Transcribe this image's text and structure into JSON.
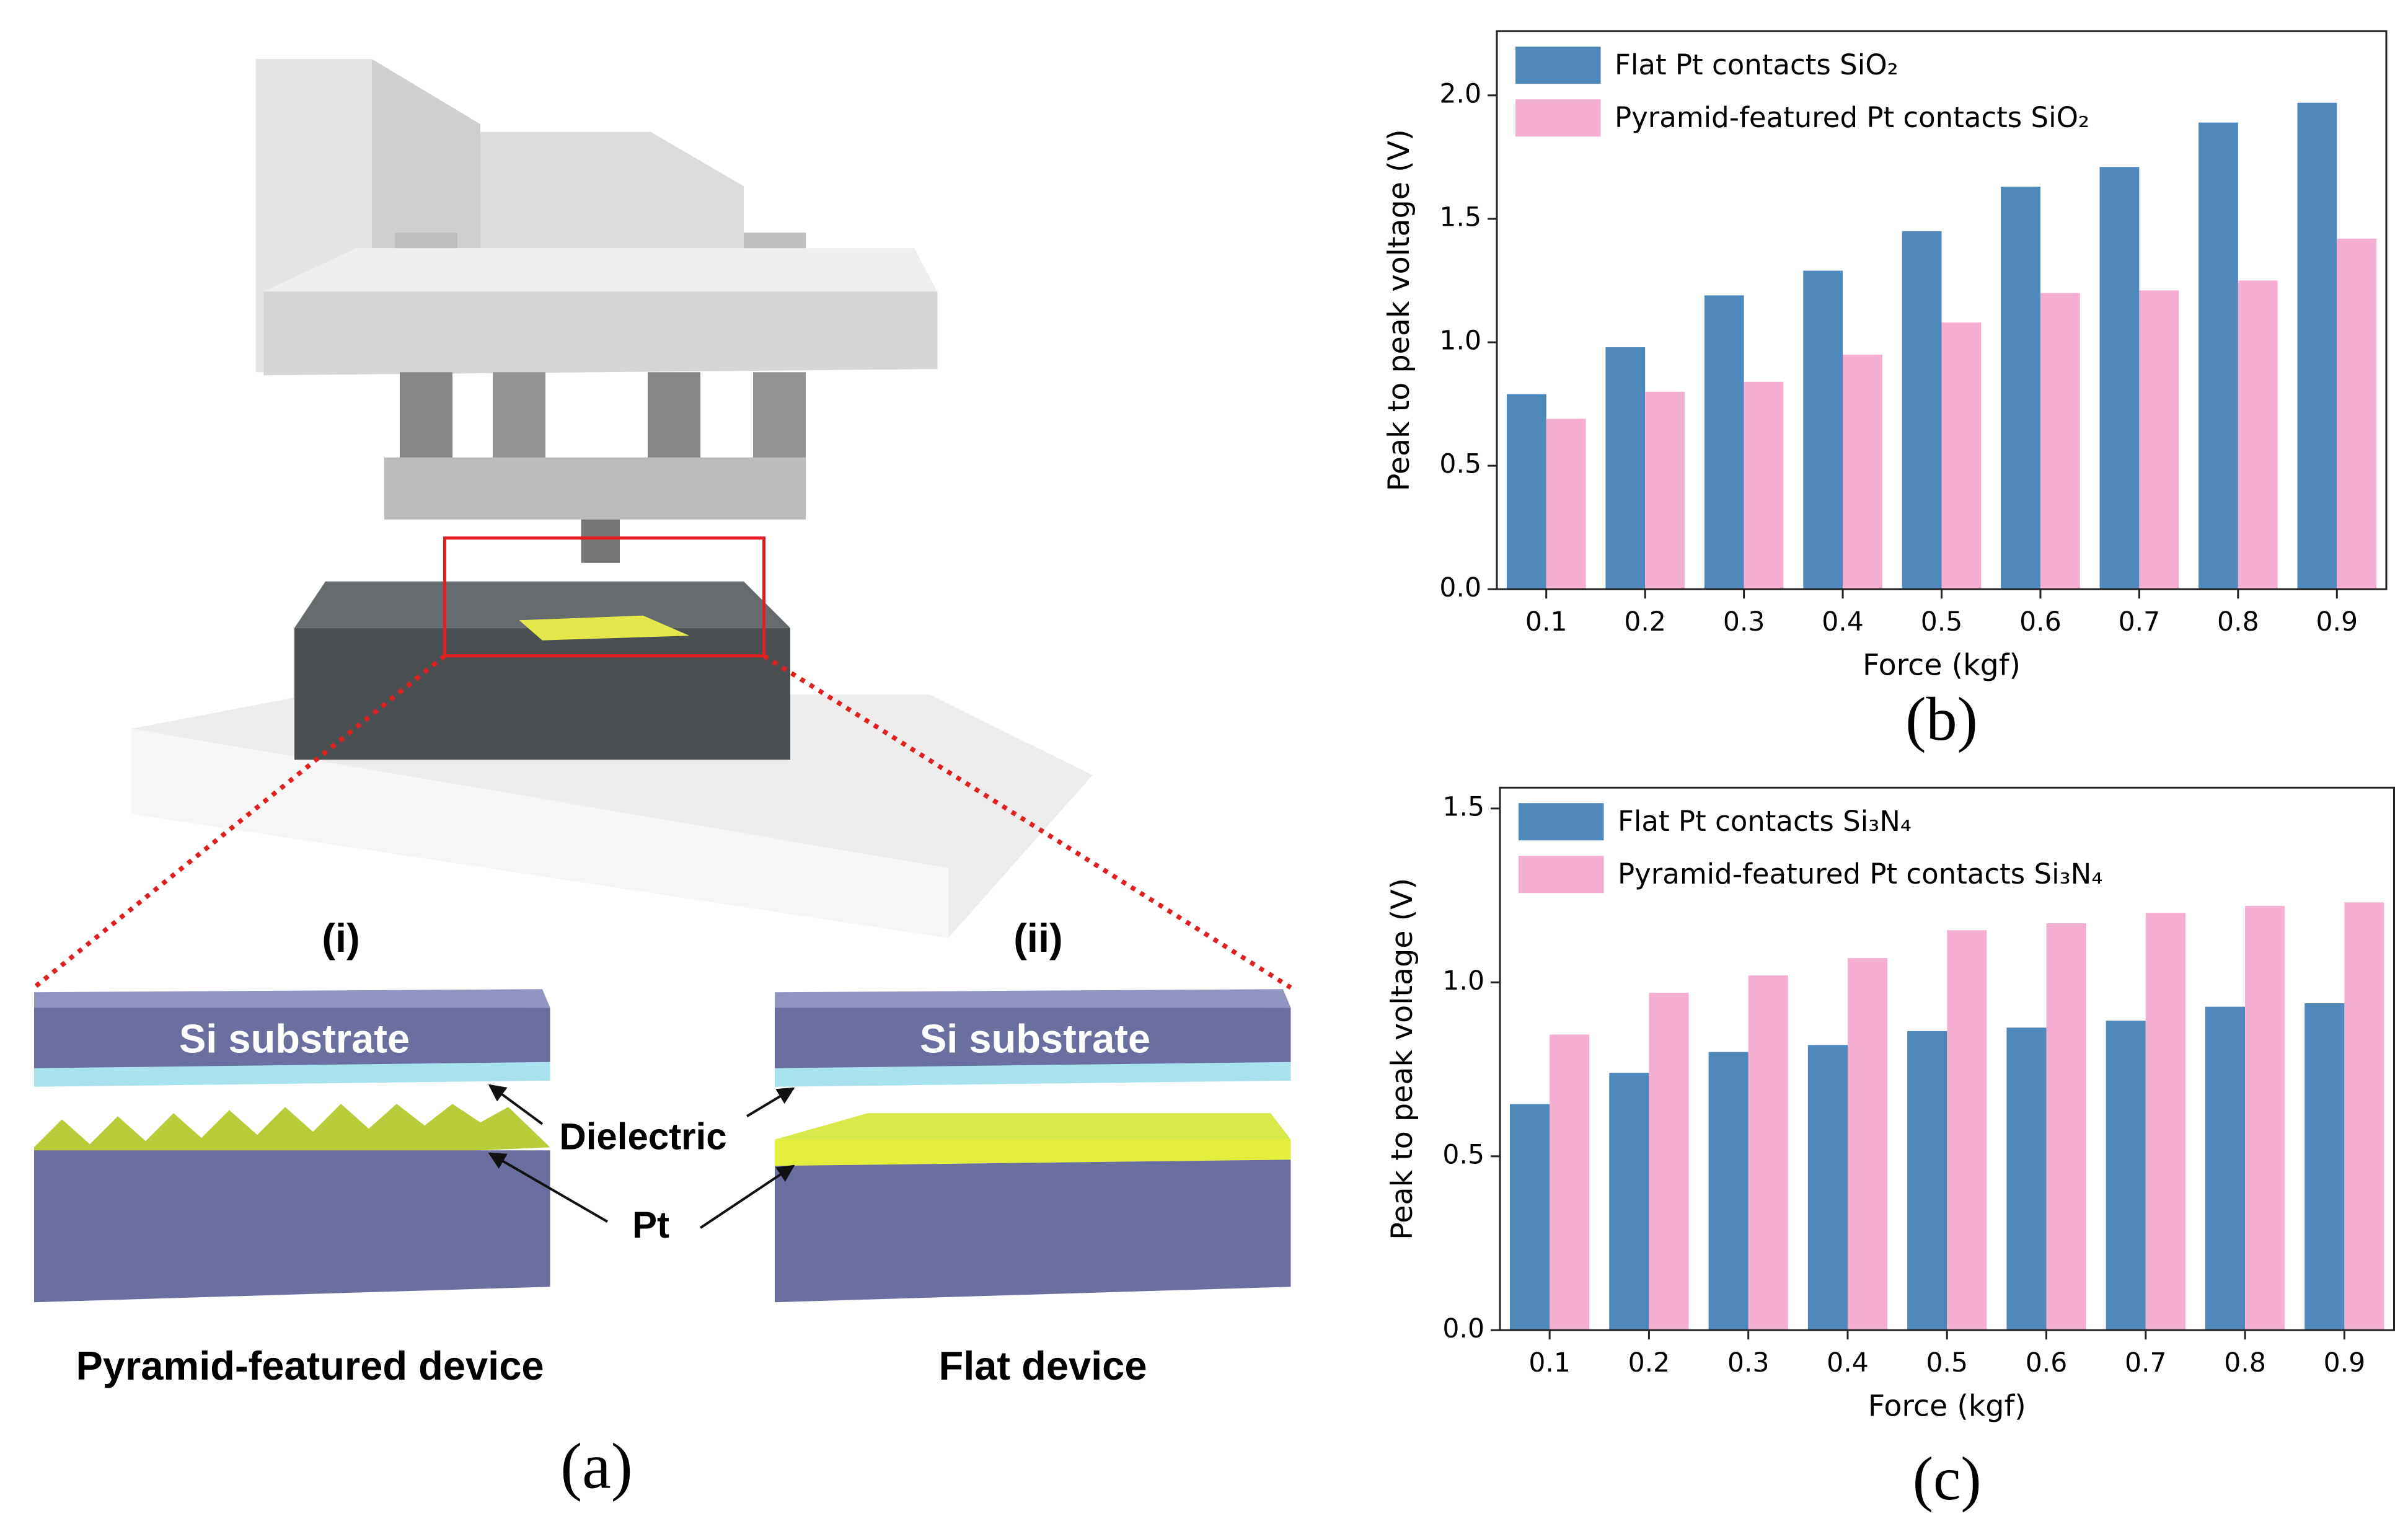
{
  "figure_a": {
    "label": "(a)",
    "left_label": "(i)",
    "right_label": "(ii)",
    "left_substrate": "Si substrate",
    "right_substrate": "Si substrate",
    "dielectric": "Dielectric",
    "pt": "Pt",
    "left_caption": "Pyramid-featured device",
    "right_caption": "Flat device"
  },
  "chart_data": [
    {
      "type": "bar",
      "label": "(b)",
      "x_label": "Force (kgf)",
      "y_label": "Peak to peak voltage (V)",
      "categories": [
        "0.1",
        "0.2",
        "0.3",
        "0.4",
        "0.5",
        "0.6",
        "0.7",
        "0.8",
        "0.9"
      ],
      "series": [
        {
          "name": "Flat Pt contacts SiO₂",
          "color": "#4f88ba",
          "values": [
            0.79,
            0.98,
            1.19,
            1.29,
            1.45,
            1.63,
            1.71,
            1.89,
            1.97
          ]
        },
        {
          "name": "Pyramid-featured Pt contacts SiO₂",
          "color": "#f5afd2",
          "values": [
            0.69,
            0.8,
            0.84,
            0.95,
            1.08,
            1.2,
            1.21,
            1.25,
            1.42
          ]
        }
      ],
      "ylim": [
        0,
        2.26
      ],
      "yticks": [
        {
          "value": 0,
          "label": "0.0"
        },
        0.5,
        {
          "value": 1,
          "label": "1.0"
        },
        1.5,
        {
          "value": 2,
          "label": "2.0"
        }
      ],
      "legend": "upper left",
      "grid": false
    },
    {
      "type": "bar",
      "label": "(c)",
      "x_label": "Force (kgf)",
      "y_label": "Peak to peak voltage (V)",
      "categories": [
        "0.1",
        "0.2",
        "0.3",
        "0.4",
        "0.5",
        "0.6",
        "0.7",
        "0.8",
        "0.9"
      ],
      "series": [
        {
          "name": "Flat Pt contacts Si₃N₄",
          "color": "#4f88ba",
          "values": [
            0.65,
            0.74,
            0.8,
            0.82,
            0.86,
            0.87,
            0.89,
            0.93,
            0.94
          ]
        },
        {
          "name": "Pyramid-featured Pt contacts Si₃N₄",
          "color": "#f5afd2",
          "values": [
            0.85,
            0.97,
            1.02,
            1.07,
            1.15,
            1.17,
            1.2,
            1.22,
            1.23
          ]
        }
      ],
      "ylim": [
        0,
        1.56
      ],
      "yticks": [
        {
          "value": 0,
          "label": "0.0"
        },
        0.5,
        {
          "value": 1,
          "label": "1.0"
        },
        1.5
      ],
      "legend": "upper left",
      "grid": false
    }
  ]
}
